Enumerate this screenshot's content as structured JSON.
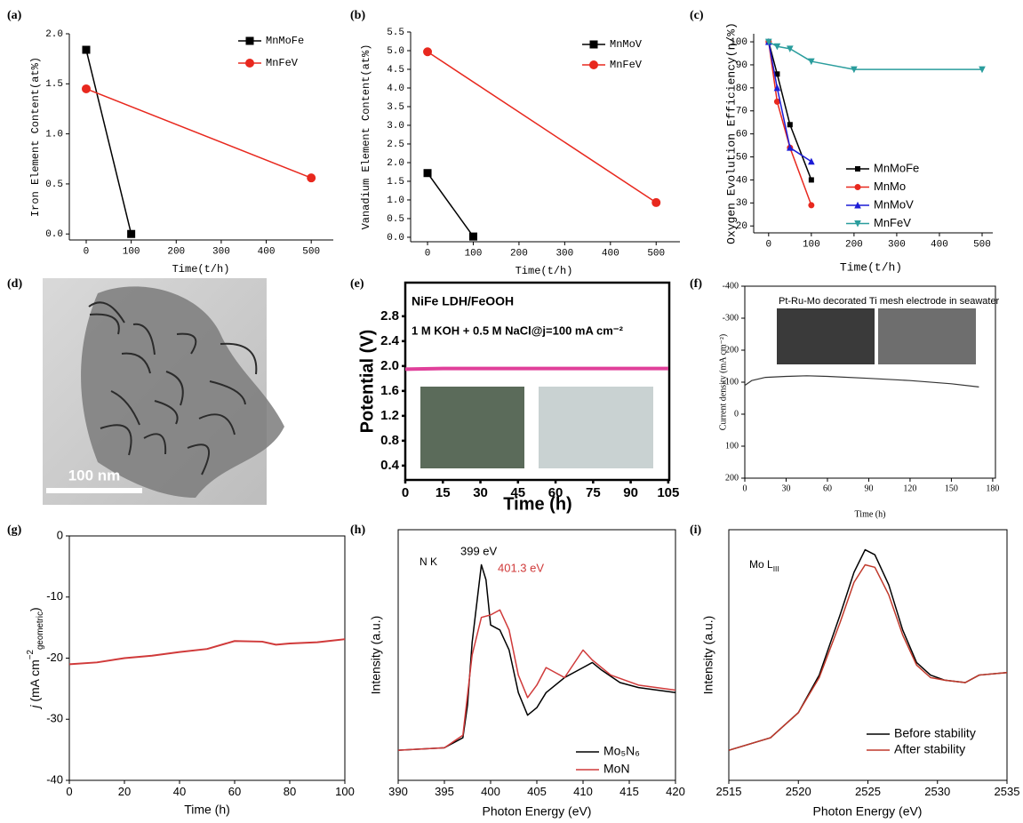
{
  "chart_data": [
    {
      "type": "line",
      "panel_label": "(a)",
      "xlabel": "Time(t/h)",
      "ylabel": "Iron Element Content(at%)",
      "xlim": [
        -37.5,
        549
      ],
      "xticks": [
        0,
        100,
        200,
        300,
        400,
        500
      ],
      "ylim": [
        -0.06,
        2.0
      ],
      "yticks": [
        {
          "value": 0,
          "label": "0.0"
        },
        0.5,
        {
          "value": 1,
          "label": "1.0"
        },
        1.5,
        {
          "value": 2,
          "label": "2.0"
        }
      ],
      "series": [
        {
          "name": "MnMoFe",
          "color": "#000000",
          "marker": "square",
          "x": [
            0,
            100
          ],
          "values": [
            1.84,
            0
          ]
        },
        {
          "name": "MnFeV",
          "color": "#e8281e",
          "marker": "circle",
          "x": [
            0,
            500
          ],
          "values": [
            1.45,
            0.56
          ]
        }
      ]
    },
    {
      "type": "line",
      "panel_label": "(b)",
      "xlabel": "Time(t/h)",
      "ylabel": "Vanadium Element Content(at%)",
      "xlim": [
        -37,
        552
      ],
      "xticks": [
        0,
        100,
        200,
        300,
        400,
        500
      ],
      "ylim": [
        -0.12,
        5.5
      ],
      "yticks": [
        {
          "value": 0,
          "label": "0.0"
        },
        0.5,
        {
          "value": 1,
          "label": "1.0"
        },
        1.5,
        {
          "value": 2,
          "label": "2.0"
        },
        2.5,
        {
          "value": 3,
          "label": "3.0"
        },
        3.5,
        {
          "value": 4,
          "label": "4.0"
        },
        4.5,
        {
          "value": 5,
          "label": "5.0"
        },
        5.5
      ],
      "series": [
        {
          "name": "MnMoV",
          "color": "#000000",
          "marker": "square",
          "x": [
            0,
            100
          ],
          "values": [
            1.72,
            0.02
          ]
        },
        {
          "name": "MnFeV",
          "color": "#e8281e",
          "marker": "circle",
          "x": [
            0,
            500
          ],
          "values": [
            4.97,
            0.93
          ]
        }
      ]
    },
    {
      "type": "line",
      "panel_label": "(c)",
      "xlabel": "Time(t/h)",
      "ylabel": "Oxygen Evolution Efficiency(η/%)",
      "xlim": [
        -35,
        525
      ],
      "xticks": [
        0,
        100,
        200,
        300,
        400,
        500
      ],
      "ylim": [
        17,
        103.5
      ],
      "yticks": [
        20,
        30,
        40,
        50,
        60,
        70,
        80,
        90,
        100
      ],
      "series": [
        {
          "name": "MnMoFe",
          "color": "#000000",
          "marker": "square",
          "x": [
            0,
            20,
            50,
            100
          ],
          "values": [
            100,
            86,
            64,
            40
          ]
        },
        {
          "name": "MnMo",
          "color": "#e8281e",
          "marker": "circle",
          "x": [
            0,
            20,
            50,
            100
          ],
          "values": [
            100,
            74,
            54,
            29
          ]
        },
        {
          "name": "MnMoV",
          "color": "#1c1cd6",
          "marker": "triangle",
          "x": [
            0,
            20,
            50,
            100
          ],
          "values": [
            100,
            80,
            54,
            48
          ]
        },
        {
          "name": "MnFeV",
          "color": "#2a9d9d",
          "marker": "triangle-down",
          "x": [
            0,
            20,
            50,
            100,
            200,
            500
          ],
          "values": [
            100,
            98,
            97,
            91.5,
            88,
            88
          ]
        }
      ]
    },
    {
      "type": "image",
      "panel_label": "(d)",
      "scale_bar": "100 nm"
    },
    {
      "type": "line",
      "panel_label": "(e)",
      "xlabel": "Time (h)",
      "ylabel": "Potential (V)",
      "annotations": [
        {
          "text": "NiFe LDH/FeOOH",
          "color": "#000000"
        },
        {
          "text": "1 M KOH + 0.5 M NaCl@j=100 mA cm⁻²",
          "color": "#000000"
        }
      ],
      "xlim": [
        0,
        105.4
      ],
      "xticks": [
        0,
        15,
        30,
        45,
        60,
        75,
        90,
        105
      ],
      "ylim": [
        0.17,
        3.34
      ],
      "yticks": [
        0.4,
        0.8,
        1.2,
        1.6,
        {
          "value": 2,
          "label": "2.0"
        },
        2.4,
        2.8
      ],
      "series": [
        {
          "name": "NiFe LDH/FeOOH",
          "color": "#e0409a",
          "x": [
            0,
            15,
            30,
            45,
            60,
            75,
            90,
            105
          ],
          "values": [
            1.95,
            1.96,
            1.96,
            1.96,
            1.96,
            1.96,
            1.96,
            1.96
          ]
        }
      ]
    },
    {
      "type": "line",
      "panel_label": "(f)",
      "xlabel": "Time (h)",
      "ylabel": "Current density (mA cm⁻²)",
      "annotations": [
        {
          "text": "Pt-Ru-Mo decorated Ti mesh electrode in seawater",
          "color": "#000000"
        }
      ],
      "xlim": [
        0,
        182
      ],
      "xticks": [
        0,
        30,
        60,
        90,
        120,
        150,
        180
      ],
      "ylim": [
        200,
        -400
      ],
      "yticks": [
        -400,
        -300,
        -200,
        -100,
        0,
        100,
        200
      ],
      "series": [
        {
          "name": "Pt-Ru-Mo",
          "color": "#333333",
          "x": [
            0,
            5,
            15,
            30,
            45,
            60,
            90,
            120,
            150,
            170
          ],
          "values": [
            -90,
            -105,
            -115,
            -118,
            -120,
            -118,
            -112,
            -105,
            -95,
            -85
          ]
        }
      ]
    },
    {
      "type": "line",
      "panel_label": "(g)",
      "xlabel": "Time (h)",
      "ylabel": [
        "j",
        " (mA cm",
        "−2",
        "geometric",
        ")"
      ],
      "xlim": [
        0,
        100
      ],
      "xticks": [
        0,
        20,
        40,
        60,
        80,
        100
      ],
      "ylim": [
        -40,
        0
      ],
      "yticks": [
        0,
        -10,
        -20,
        -30,
        -40
      ],
      "series": [
        {
          "name": "j",
          "color": "#d03a3a",
          "x": [
            0,
            10,
            20,
            30,
            40,
            50,
            60,
            70,
            75,
            80,
            90,
            100
          ],
          "values": [
            -21,
            -20.7,
            -20,
            -19.6,
            -19,
            -18.5,
            -17.2,
            -17.3,
            -17.8,
            -17.6,
            -17.4,
            -16.9
          ]
        }
      ]
    },
    {
      "type": "line",
      "panel_label": "(h)",
      "xlabel": "Photon Energy (eV)",
      "ylabel": "Intensity (a.u.)",
      "annotations": [
        {
          "text": "399 eV",
          "color": "#000000"
        },
        {
          "text": "401.3 eV",
          "color": "#d03a3a"
        },
        {
          "text": "N K",
          "color": "#000000"
        }
      ],
      "xlim": [
        390,
        420
      ],
      "xticks": [
        390,
        395,
        400,
        405,
        410,
        415,
        420
      ],
      "ylim": [
        0,
        1
      ],
      "series": [
        {
          "name": "Mo₅N₆",
          "color": "#000000",
          "x": [
            390,
            395,
            397,
            397.5,
            398,
            399,
            399.5,
            400,
            401,
            402,
            403,
            404,
            405,
            406,
            408,
            410,
            411,
            412,
            414,
            416,
            420
          ],
          "values": [
            0.12,
            0.13,
            0.17,
            0.3,
            0.55,
            0.86,
            0.8,
            0.62,
            0.6,
            0.52,
            0.35,
            0.26,
            0.29,
            0.35,
            0.41,
            0.45,
            0.47,
            0.44,
            0.39,
            0.37,
            0.35
          ]
        },
        {
          "name": "MoN",
          "color": "#d03a3a",
          "x": [
            390,
            395,
            397,
            398,
            399,
            400,
            401,
            402,
            403,
            404,
            405,
            406,
            407,
            408,
            410,
            411,
            413,
            416,
            420
          ],
          "values": [
            0.12,
            0.13,
            0.18,
            0.5,
            0.65,
            0.66,
            0.68,
            0.6,
            0.42,
            0.33,
            0.38,
            0.45,
            0.43,
            0.41,
            0.52,
            0.48,
            0.42,
            0.38,
            0.36
          ]
        }
      ]
    },
    {
      "type": "line",
      "panel_label": "(i)",
      "xlabel": "Photon Energy (eV)",
      "ylabel": "Intensity (a.u.)",
      "annotations": [
        {
          "text": [
            "Mo L",
            "III"
          ],
          "color": "#000000"
        }
      ],
      "xlim": [
        2515,
        2535
      ],
      "xticks": [
        2515,
        2520,
        2525,
        2530,
        2535
      ],
      "ylim": [
        0,
        1
      ],
      "series": [
        {
          "name": "Before stability",
          "color": "#000000",
          "x": [
            2515,
            2518,
            2520,
            2521.5,
            2523,
            2524,
            2524.8,
            2525.5,
            2526.5,
            2527.5,
            2528.5,
            2529.5,
            2530.5,
            2532,
            2533,
            2535
          ],
          "values": [
            0.12,
            0.17,
            0.27,
            0.42,
            0.66,
            0.83,
            0.92,
            0.9,
            0.78,
            0.6,
            0.47,
            0.42,
            0.4,
            0.39,
            0.42,
            0.43
          ]
        },
        {
          "name": "After stability",
          "color": "#c0392b",
          "x": [
            2515,
            2518,
            2520,
            2521.5,
            2523,
            2524,
            2524.8,
            2525.5,
            2526.5,
            2527.5,
            2528.5,
            2529.5,
            2530.5,
            2532,
            2533,
            2535
          ],
          "values": [
            0.12,
            0.17,
            0.27,
            0.41,
            0.63,
            0.79,
            0.86,
            0.85,
            0.74,
            0.58,
            0.46,
            0.41,
            0.4,
            0.39,
            0.42,
            0.43
          ]
        }
      ]
    }
  ]
}
